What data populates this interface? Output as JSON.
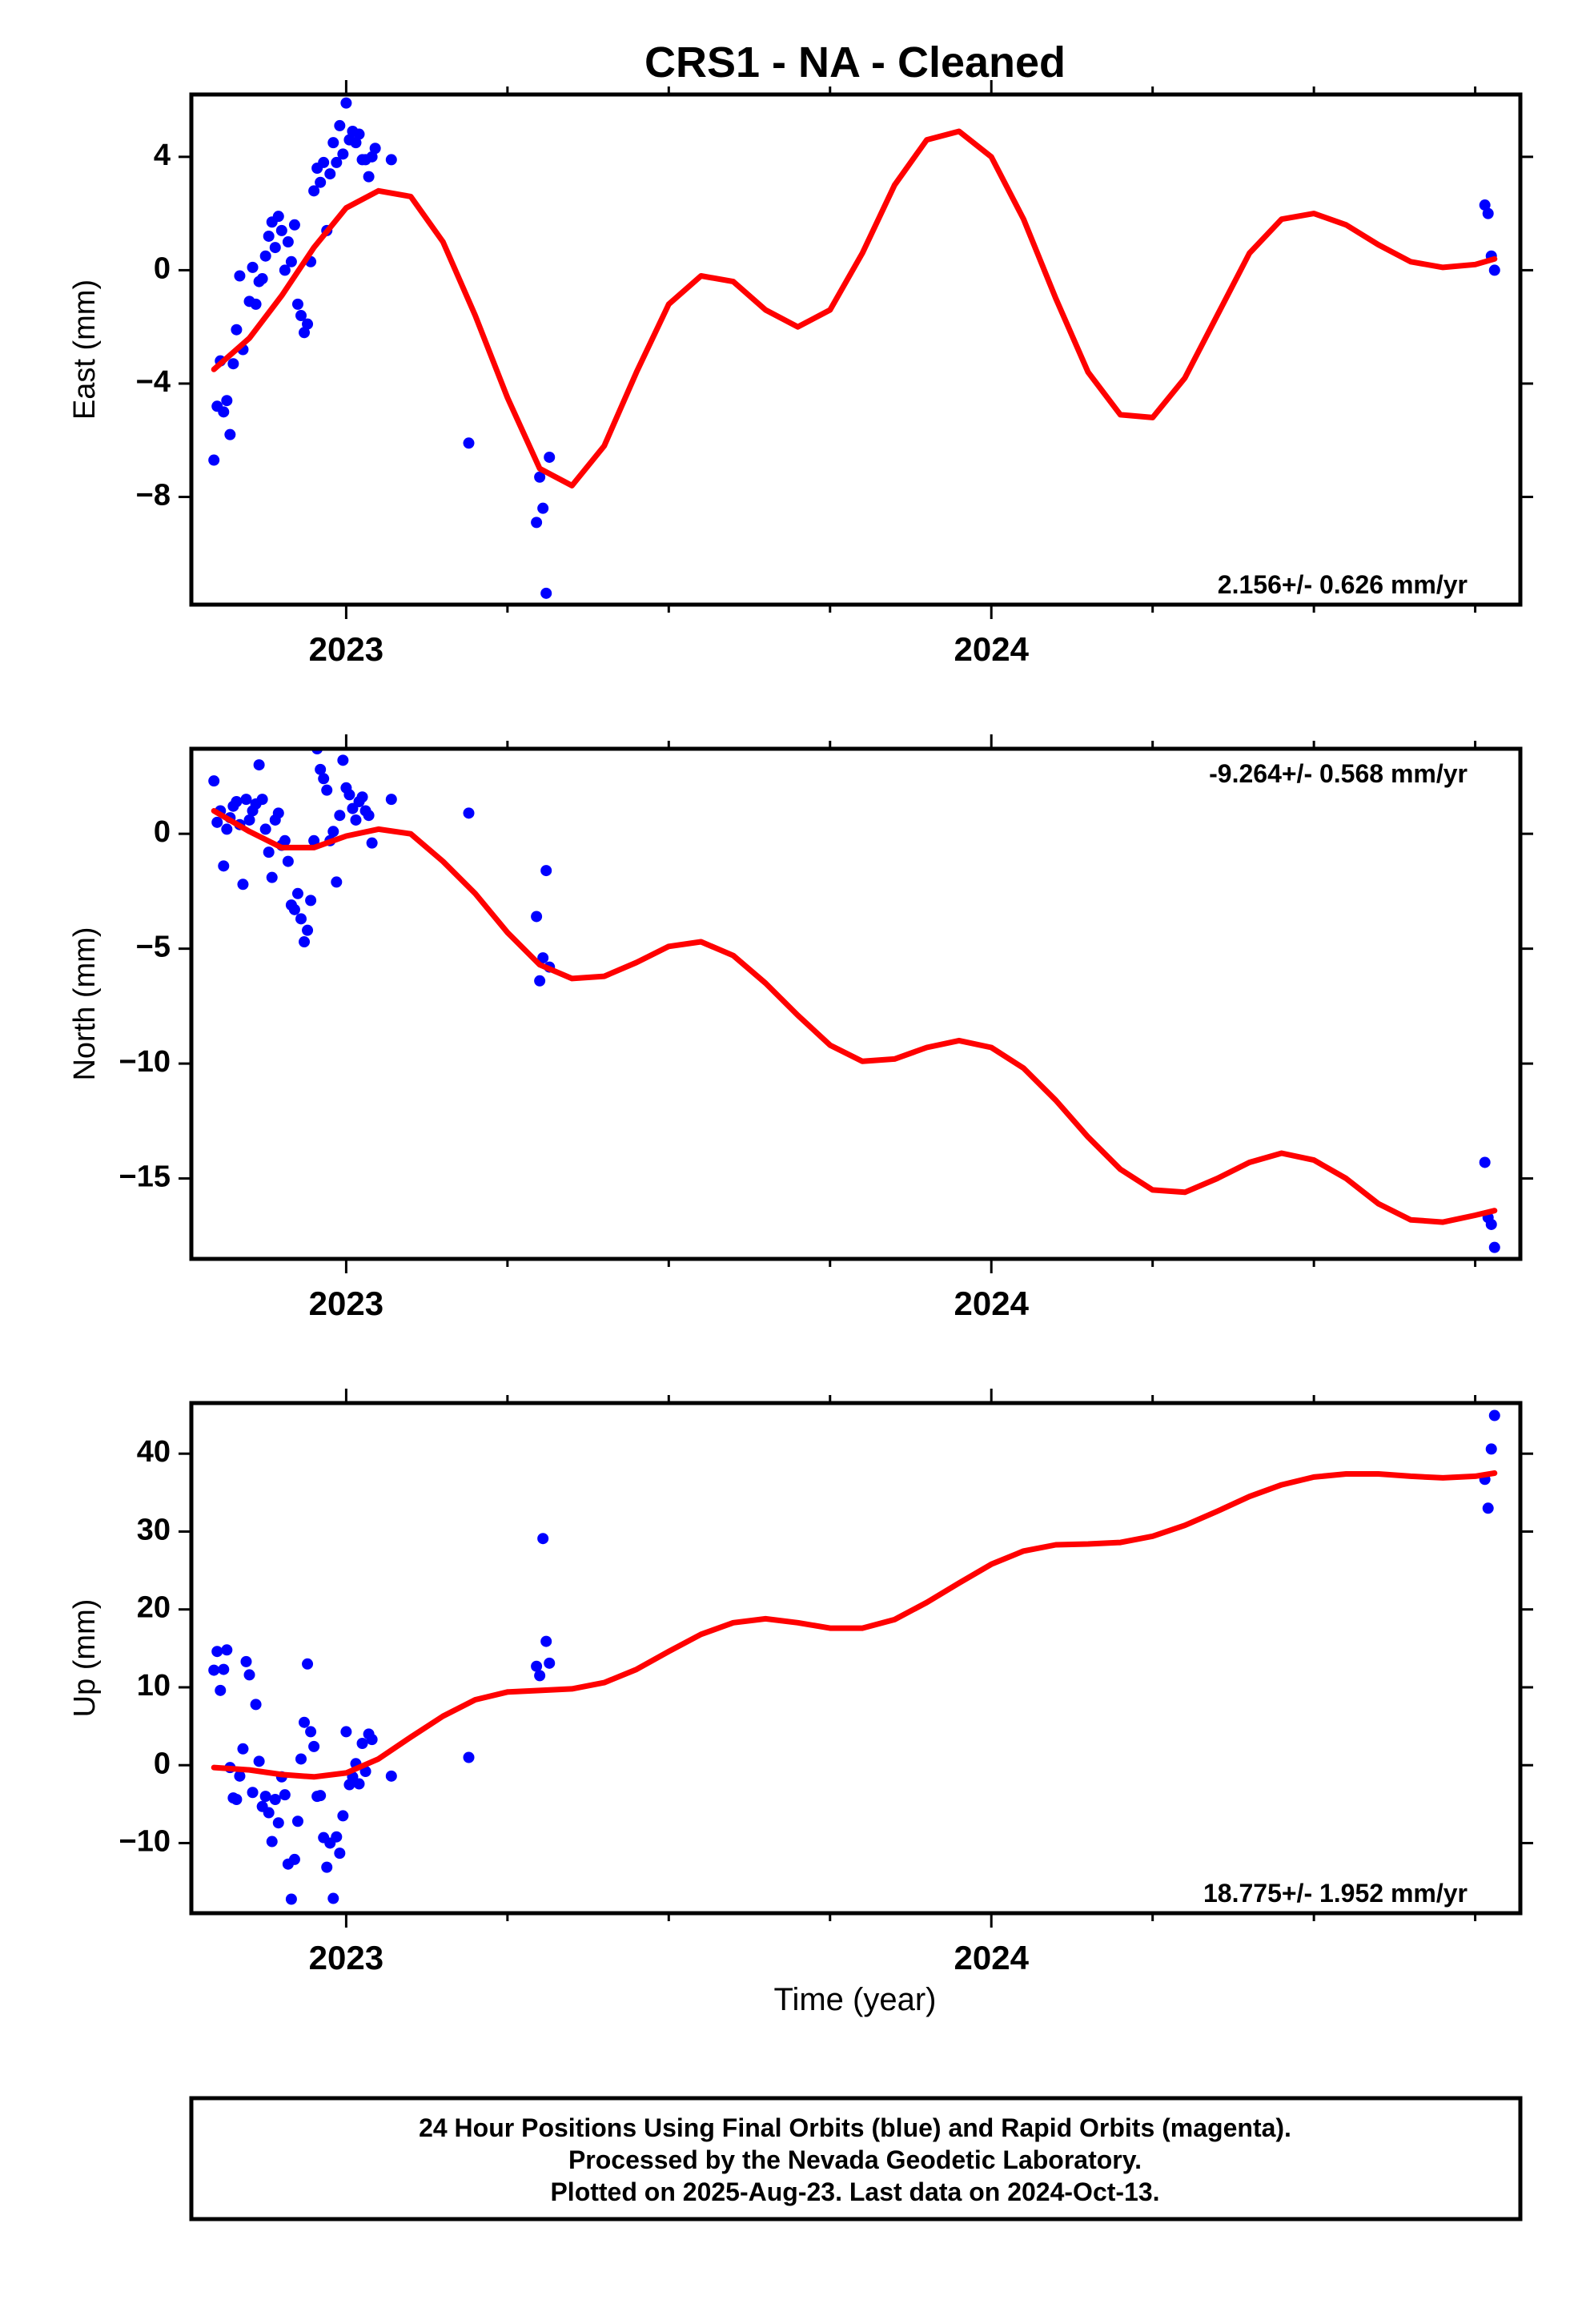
{
  "title": "CRS1  - NA - Cleaned",
  "x_axis_label": "Time (year)",
  "footer": {
    "lines": [
      "24 Hour Positions Using Final Orbits (blue) and Rapid Orbits (magenta).",
      "Processed by the Nevada Geodetic Laboratory.",
      "Plotted on 2025-Aug-23. Last data on 2024-Oct-13."
    ]
  },
  "colors": {
    "points": "#0000ff",
    "fit": "#ff0000",
    "frame": "#000000",
    "text": "#000000"
  },
  "chart_data": [
    {
      "type": "scatter",
      "component": "East",
      "ylabel": "East (mm)",
      "rate_label": "2.156+/- 0.626 mm/yr",
      "rate_position": "bottom-right",
      "xlim": [
        2022.76,
        2024.82
      ],
      "ylim": [
        -11.8,
        6.2
      ],
      "yticks": [
        4,
        0,
        -4,
        -8
      ],
      "xticks": [
        2023,
        2024
      ],
      "minor_xticks": [
        2023.25,
        2023.5,
        2023.75,
        2024.25,
        2024.5,
        2024.75
      ],
      "grid": false,
      "series": [
        {
          "kind": "points",
          "x": [
            2022.795,
            2022.8,
            2022.805,
            2022.81,
            2022.815,
            2022.82,
            2022.825,
            2022.83,
            2022.835,
            2022.84,
            2022.85,
            2022.855,
            2022.86,
            2022.865,
            2022.87,
            2022.875,
            2022.88,
            2022.885,
            2022.89,
            2022.895,
            2022.9,
            2022.905,
            2022.91,
            2022.915,
            2022.92,
            2022.925,
            2022.93,
            2022.935,
            2022.94,
            2022.945,
            2022.95,
            2022.955,
            2022.96,
            2022.965,
            2022.97,
            2022.975,
            2022.98,
            2022.985,
            2022.99,
            2022.995,
            2023.0,
            2023.005,
            2023.01,
            2023.015,
            2023.02,
            2023.025,
            2023.03,
            2023.035,
            2023.04,
            2023.045,
            2023.07,
            2023.19,
            2023.295,
            2023.3,
            2023.305,
            2023.31,
            2023.315,
            2024.765,
            2024.77,
            2024.775,
            2024.78
          ],
          "y": [
            -6.7,
            -4.8,
            -3.2,
            -5.0,
            -4.6,
            -5.8,
            -3.3,
            -2.1,
            -0.2,
            -2.8,
            -1.1,
            0.1,
            -1.2,
            -0.4,
            -0.3,
            0.5,
            1.2,
            1.7,
            0.8,
            1.9,
            1.4,
            0.0,
            1.0,
            0.3,
            1.6,
            -1.2,
            -1.6,
            -2.2,
            -1.9,
            0.3,
            2.8,
            3.6,
            3.1,
            3.8,
            1.4,
            3.4,
            4.5,
            3.8,
            5.1,
            4.1,
            5.9,
            4.6,
            4.9,
            4.5,
            4.8,
            3.9,
            3.9,
            3.3,
            4.0,
            4.3,
            3.9,
            -6.1,
            -8.9,
            -7.3,
            -8.4,
            -11.4,
            -6.6,
            2.3,
            2.0,
            0.5,
            0.0
          ]
        },
        {
          "kind": "fit",
          "x": [
            2022.795,
            2022.85,
            2022.9,
            2022.95,
            2023.0,
            2023.05,
            2023.1,
            2023.15,
            2023.2,
            2023.25,
            2023.3,
            2023.35,
            2023.4,
            2023.45,
            2023.5,
            2023.55,
            2023.6,
            2023.65,
            2023.7,
            2023.75,
            2023.8,
            2023.85,
            2023.9,
            2023.95,
            2024.0,
            2024.05,
            2024.1,
            2024.15,
            2024.2,
            2024.25,
            2024.3,
            2024.35,
            2024.4,
            2024.45,
            2024.5,
            2024.55,
            2024.6,
            2024.65,
            2024.7,
            2024.75,
            2024.78
          ],
          "y": [
            -3.5,
            -2.4,
            -0.9,
            0.8,
            2.2,
            2.8,
            2.6,
            1.0,
            -1.6,
            -4.5,
            -7.0,
            -7.6,
            -6.2,
            -3.6,
            -1.2,
            -0.2,
            -0.4,
            -1.4,
            -2.0,
            -1.4,
            0.6,
            3.0,
            4.6,
            4.9,
            4.0,
            1.8,
            -1.0,
            -3.6,
            -5.1,
            -5.2,
            -3.8,
            -1.6,
            0.6,
            1.8,
            2.0,
            1.6,
            0.9,
            0.3,
            0.1,
            0.2,
            0.4
          ]
        }
      ]
    },
    {
      "type": "scatter",
      "component": "North",
      "ylabel": "North (mm)",
      "rate_label": "-9.264+/- 0.568 mm/yr",
      "rate_position": "top-right",
      "xlim": [
        2022.76,
        2024.82
      ],
      "ylim": [
        -18.5,
        3.7
      ],
      "yticks": [
        0,
        -5,
        -10,
        -15
      ],
      "xticks": [
        2023,
        2024
      ],
      "minor_xticks": [
        2023.25,
        2023.5,
        2023.75,
        2024.25,
        2024.5,
        2024.75
      ],
      "grid": false,
      "series": [
        {
          "kind": "points",
          "x": [
            2022.795,
            2022.8,
            2022.805,
            2022.81,
            2022.815,
            2022.82,
            2022.825,
            2022.83,
            2022.835,
            2022.84,
            2022.845,
            2022.85,
            2022.855,
            2022.86,
            2022.865,
            2022.87,
            2022.875,
            2022.88,
            2022.885,
            2022.89,
            2022.895,
            2022.9,
            2022.905,
            2022.91,
            2022.915,
            2022.92,
            2022.925,
            2022.93,
            2022.935,
            2022.94,
            2022.945,
            2022.95,
            2022.955,
            2022.96,
            2022.965,
            2022.97,
            2022.975,
            2022.98,
            2022.985,
            2022.99,
            2022.995,
            2023.0,
            2023.005,
            2023.01,
            2023.015,
            2023.02,
            2023.025,
            2023.03,
            2023.035,
            2023.04,
            2023.07,
            2023.19,
            2023.295,
            2023.3,
            2023.305,
            2023.31,
            2023.315,
            2024.765,
            2024.77,
            2024.775,
            2024.78
          ],
          "y": [
            2.3,
            0.5,
            1.0,
            -1.4,
            0.2,
            0.7,
            1.2,
            1.4,
            0.4,
            -2.2,
            1.5,
            0.6,
            1.0,
            1.3,
            3.0,
            1.5,
            0.2,
            -0.8,
            -1.9,
            0.6,
            0.9,
            -0.5,
            -0.3,
            -1.2,
            -3.1,
            -3.3,
            -2.6,
            -3.7,
            -4.7,
            -4.2,
            -2.9,
            -0.3,
            3.7,
            2.8,
            2.4,
            1.9,
            -0.3,
            0.1,
            -2.1,
            0.8,
            3.2,
            2.0,
            1.7,
            1.1,
            0.6,
            1.4,
            1.6,
            1.0,
            0.8,
            -0.4,
            1.5,
            0.9,
            -3.6,
            -6.4,
            -5.4,
            -1.6,
            -5.8,
            -14.3,
            -16.7,
            -17.0,
            -18.0
          ]
        },
        {
          "kind": "fit",
          "x": [
            2022.795,
            2022.85,
            2022.9,
            2022.95,
            2023.0,
            2023.05,
            2023.1,
            2023.15,
            2023.2,
            2023.25,
            2023.3,
            2023.35,
            2023.4,
            2023.45,
            2023.5,
            2023.55,
            2023.6,
            2023.65,
            2023.7,
            2023.75,
            2023.8,
            2023.85,
            2023.9,
            2023.95,
            2024.0,
            2024.05,
            2024.1,
            2024.15,
            2024.2,
            2024.25,
            2024.3,
            2024.35,
            2024.4,
            2024.45,
            2024.5,
            2024.55,
            2024.6,
            2024.65,
            2024.7,
            2024.75,
            2024.78
          ],
          "y": [
            1.0,
            0.1,
            -0.6,
            -0.6,
            -0.1,
            0.2,
            0.0,
            -1.2,
            -2.6,
            -4.3,
            -5.7,
            -6.3,
            -6.2,
            -5.6,
            -4.9,
            -4.7,
            -5.3,
            -6.5,
            -7.9,
            -9.2,
            -9.9,
            -9.8,
            -9.3,
            -9.0,
            -9.3,
            -10.2,
            -11.6,
            -13.2,
            -14.6,
            -15.5,
            -15.6,
            -15.0,
            -14.3,
            -13.9,
            -14.2,
            -15.0,
            -16.1,
            -16.8,
            -16.9,
            -16.6,
            -16.4
          ]
        }
      ]
    },
    {
      "type": "scatter",
      "component": "Up",
      "ylabel": "Up (mm)",
      "rate_label": "18.775+/- 1.952 mm/yr",
      "rate_position": "bottom-right",
      "xlim": [
        2022.76,
        2024.82
      ],
      "ylim": [
        -19,
        46.5
      ],
      "yticks": [
        40,
        30,
        20,
        10,
        0,
        -10
      ],
      "xticks": [
        2023,
        2024
      ],
      "minor_xticks": [
        2023.25,
        2023.5,
        2023.75,
        2024.25,
        2024.5,
        2024.75
      ],
      "grid": false,
      "series": [
        {
          "kind": "points",
          "x": [
            2022.795,
            2022.8,
            2022.805,
            2022.81,
            2022.815,
            2022.82,
            2022.825,
            2022.83,
            2022.835,
            2022.84,
            2022.845,
            2022.85,
            2022.855,
            2022.86,
            2022.865,
            2022.87,
            2022.875,
            2022.88,
            2022.885,
            2022.89,
            2022.895,
            2022.9,
            2022.905,
            2022.91,
            2022.915,
            2022.92,
            2022.925,
            2022.93,
            2022.935,
            2022.94,
            2022.945,
            2022.95,
            2022.955,
            2022.96,
            2022.965,
            2022.97,
            2022.975,
            2022.98,
            2022.985,
            2022.99,
            2022.995,
            2023.0,
            2023.005,
            2023.01,
            2023.015,
            2023.02,
            2023.025,
            2023.03,
            2023.035,
            2023.04,
            2023.07,
            2023.19,
            2023.295,
            2023.3,
            2023.305,
            2023.31,
            2023.315,
            2024.765,
            2024.77,
            2024.775,
            2024.78
          ],
          "y": [
            12.2,
            14.6,
            9.6,
            12.3,
            14.8,
            -0.3,
            -4.2,
            -4.4,
            -1.4,
            2.1,
            13.3,
            11.6,
            -3.5,
            7.8,
            0.5,
            -5.3,
            -4.0,
            -6.1,
            -9.8,
            -4.4,
            -7.4,
            -1.5,
            -3.8,
            -12.7,
            -17.2,
            -12.1,
            -7.2,
            0.8,
            5.5,
            13.0,
            4.3,
            2.4,
            -4.0,
            -3.9,
            -9.3,
            -13.1,
            -10.0,
            -17.1,
            -9.2,
            -11.3,
            -6.5,
            4.3,
            -2.5,
            -1.5,
            0.2,
            -2.4,
            2.8,
            -0.8,
            4.0,
            3.3,
            -1.4,
            1.0,
            12.7,
            11.5,
            29.1,
            15.9,
            13.1,
            36.7,
            33.0,
            40.6,
            44.9
          ]
        },
        {
          "kind": "fit",
          "x": [
            2022.795,
            2022.85,
            2022.9,
            2022.95,
            2023.0,
            2023.05,
            2023.1,
            2023.15,
            2023.2,
            2023.25,
            2023.3,
            2023.35,
            2023.4,
            2023.45,
            2023.5,
            2023.55,
            2023.6,
            2023.65,
            2023.7,
            2023.75,
            2023.8,
            2023.85,
            2023.9,
            2023.95,
            2024.0,
            2024.05,
            2024.1,
            2024.15,
            2024.2,
            2024.25,
            2024.3,
            2024.35,
            2024.4,
            2024.45,
            2024.5,
            2024.55,
            2024.6,
            2024.65,
            2024.7,
            2024.75,
            2024.78
          ],
          "y": [
            -0.3,
            -0.6,
            -1.2,
            -1.5,
            -1.0,
            0.8,
            3.6,
            6.3,
            8.4,
            9.4,
            9.6,
            9.8,
            10.6,
            12.3,
            14.6,
            16.8,
            18.3,
            18.8,
            18.3,
            17.6,
            17.6,
            18.7,
            20.9,
            23.4,
            25.8,
            27.5,
            28.3,
            28.4,
            28.6,
            29.4,
            30.8,
            32.6,
            34.5,
            36.0,
            37.0,
            37.4,
            37.4,
            37.1,
            36.9,
            37.1,
            37.5
          ]
        }
      ]
    }
  ]
}
